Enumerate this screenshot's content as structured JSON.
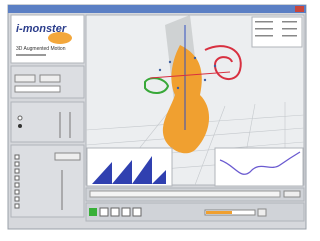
{
  "header": {
    "logo": "i-monster",
    "subtitle": "3D Augmented Motion"
  }
}
